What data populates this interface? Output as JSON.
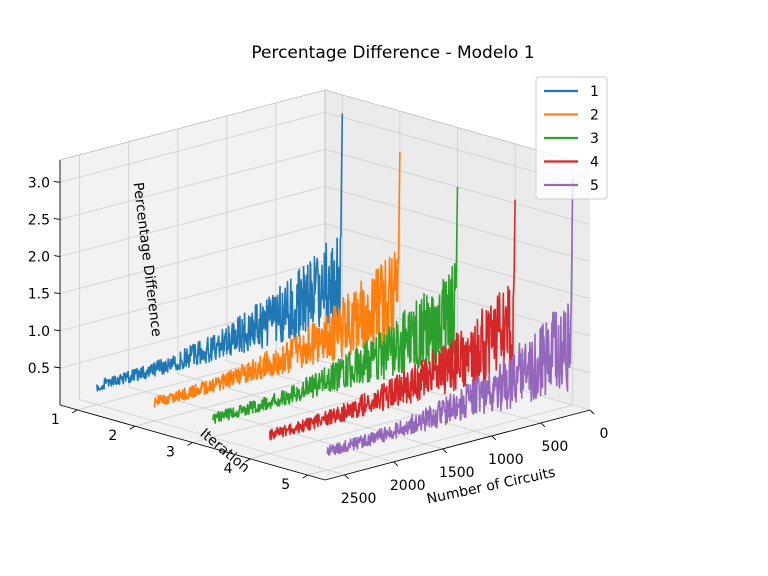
{
  "chart_data": {
    "type": "line",
    "projection": "3d",
    "title": "Percentage Difference - Modelo 1",
    "xlabel": "Number of Circuits",
    "ylabel": "Iteration",
    "zlabel": "Percentage Difference",
    "x_ticks": [
      "0",
      "500",
      "1000",
      "1500",
      "2000",
      "2500"
    ],
    "y_ticks": [
      "1",
      "2",
      "3",
      "4",
      "5"
    ],
    "z_ticks": [
      "0.5",
      "1.0",
      "1.5",
      "2.0",
      "2.5",
      "3.0"
    ],
    "xlim": [
      0,
      2700
    ],
    "zlim": [
      0,
      3.3
    ],
    "grid": true,
    "legend_position": "top-right",
    "series": [
      {
        "name": "1",
        "iteration": 1,
        "color": "#1f77b4",
        "x_range": [
          0,
          2500
        ],
        "noise": [
          0.08,
          0.4
        ],
        "peak": 3.05
      },
      {
        "name": "2",
        "iteration": 2,
        "color": "#ff7f0e",
        "x_range": [
          0,
          2500
        ],
        "noise": [
          0.08,
          0.4
        ],
        "peak": 2.75
      },
      {
        "name": "3",
        "iteration": 3,
        "color": "#2ca02c",
        "x_range": [
          0,
          2500
        ],
        "noise": [
          0.08,
          0.4
        ],
        "peak": 2.5
      },
      {
        "name": "4",
        "iteration": 4,
        "color": "#d62728",
        "x_range": [
          0,
          2500
        ],
        "noise": [
          0.08,
          0.4
        ],
        "peak": 2.55
      },
      {
        "name": "5",
        "iteration": 5,
        "color": "#9467bd",
        "x_range": [
          0,
          2500
        ],
        "noise": [
          0.08,
          0.4
        ],
        "peak": 3.05
      }
    ]
  }
}
